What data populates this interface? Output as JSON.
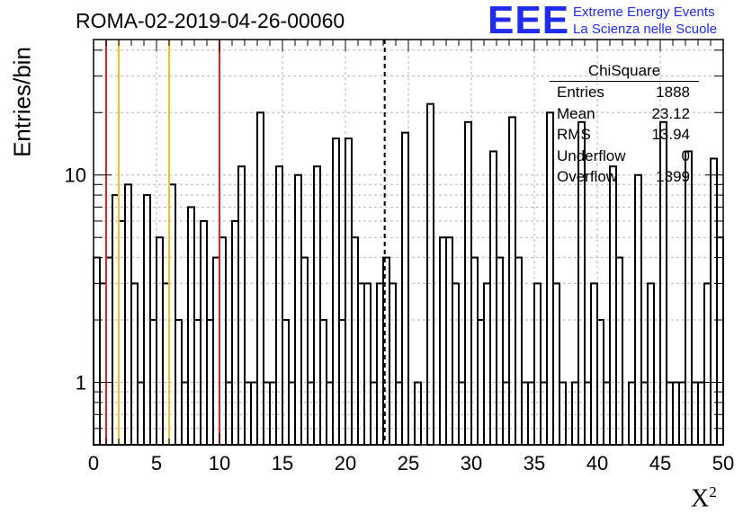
{
  "header": {
    "run_title": "ROMA-02-2019-04-26-00060",
    "logo_mark": "EEE",
    "logo_line1": "Extreme Energy Events",
    "logo_line2": "La Scienza nelle Scuole"
  },
  "stats_box": {
    "title": "ChiSquare",
    "rows": [
      {
        "label": "Entries",
        "value": "1888"
      },
      {
        "label": "Mean",
        "value": "23.12"
      },
      {
        "label": "RMS",
        "value": "13.94"
      },
      {
        "label": "Underflow",
        "value": "0"
      },
      {
        "label": "Overflow",
        "value": "1399"
      }
    ]
  },
  "chart_data": {
    "type": "bar",
    "title": "ROMA-02-2019-04-26-00060",
    "xlabel": "X",
    "xlabel_superscript": "2",
    "ylabel": "Entries/bin",
    "xlim": [
      0,
      50
    ],
    "ylim": [
      0.5,
      45
    ],
    "y_scale": "log",
    "grid": true,
    "bin_width": 0.5,
    "x_ticks": [
      "0",
      "5",
      "10",
      "15",
      "20",
      "25",
      "30",
      "35",
      "40",
      "45",
      "50"
    ],
    "y_ticks": [
      "1",
      "10"
    ],
    "values": [
      4,
      3,
      4,
      8,
      6,
      9,
      3,
      1,
      8,
      2,
      5,
      3,
      9,
      2,
      1,
      7,
      2,
      6,
      2,
      4,
      5,
      1,
      6,
      11,
      1,
      1,
      20,
      1,
      1,
      11,
      2,
      1,
      10,
      4,
      1,
      11,
      2,
      1,
      15,
      2,
      15,
      5,
      3,
      3,
      1,
      3,
      4,
      3,
      1,
      16,
      0,
      1,
      0,
      22,
      0,
      5,
      5,
      3,
      1,
      18,
      4,
      2,
      3,
      13,
      4,
      1,
      19,
      4,
      1,
      1,
      3,
      1,
      20,
      3,
      1,
      0,
      1,
      18,
      1,
      3,
      2,
      1,
      11,
      4,
      0,
      1,
      10,
      1,
      3,
      0,
      18,
      1,
      1,
      1,
      13,
      1,
      1,
      3,
      12,
      5
    ],
    "reference_lines": [
      {
        "x": 1,
        "color": "#e8211b",
        "style": "solid"
      },
      {
        "x": 2,
        "color": "#f2c21a",
        "style": "solid"
      },
      {
        "x": 6,
        "color": "#f2c21a",
        "style": "solid"
      },
      {
        "x": 10,
        "color": "#e8211b",
        "style": "solid"
      },
      {
        "x": 23.12,
        "color": "#000000",
        "style": "dashed"
      }
    ],
    "line_color": "#000000",
    "legend": "top-right"
  }
}
